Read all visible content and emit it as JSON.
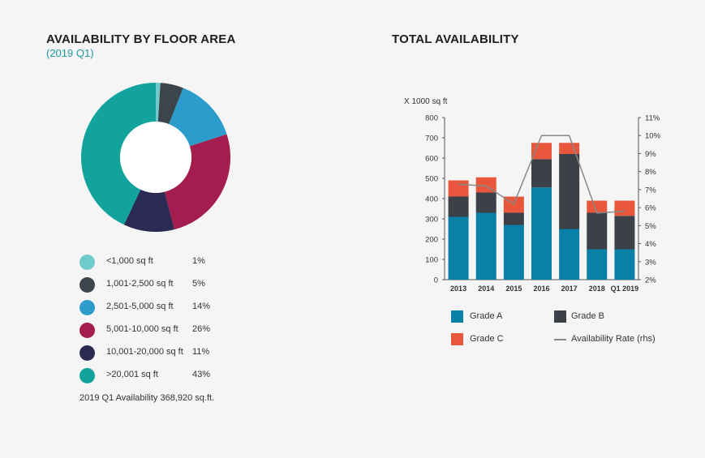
{
  "left": {
    "title": "AVAILABILITY BY FLOOR AREA",
    "subtitle": "(2019 Q1)",
    "footnote": "2019 Q1 Availability 368,920 sq.ft.",
    "legend": [
      {
        "label": "<1,000 sq ft",
        "value": "1%",
        "color": "#6fcbcb"
      },
      {
        "label": "1,001-2,500 sq ft",
        "value": "5%",
        "color": "#3d454c"
      },
      {
        "label": "2,501-5,000 sq ft",
        "value": "14%",
        "color": "#2b9ccb"
      },
      {
        "label": "5,001-10,000 sq ft",
        "value": "26%",
        "color": "#a51d4f"
      },
      {
        "label": "10,001-20,000 sq ft",
        "value": "11%",
        "color": "#2a2a52"
      },
      {
        "label": ">20,001 sq ft",
        "value": "43%",
        "color": "#12a39c"
      }
    ]
  },
  "right": {
    "title": "TOTAL AVAILABILITY",
    "unit_label": "X 1000 sq ft",
    "legend": [
      {
        "label": "Grade A",
        "color": "#0a7fa8"
      },
      {
        "label": "Grade B",
        "color": "#3b4147"
      },
      {
        "label": "Grade C",
        "color": "#e8573c"
      },
      {
        "label": "Availability Rate (rhs)",
        "color": "#888888"
      }
    ]
  },
  "chart_data": [
    {
      "type": "pie",
      "title": "AVAILABILITY BY FLOOR AREA",
      "subtitle": "(2019 Q1)",
      "categories": [
        "<1,000 sq ft",
        "1,001-2,500 sq ft",
        "2,501-5,000 sq ft",
        "5,001-10,000 sq ft",
        "10,001-20,000 sq ft",
        ">20,001 sq ft"
      ],
      "values": [
        1,
        5,
        14,
        26,
        11,
        43
      ],
      "colors": [
        "#6fcbcb",
        "#3d454c",
        "#2b9ccb",
        "#a51d4f",
        "#2a2a52",
        "#12a39c"
      ],
      "donut": true
    },
    {
      "type": "bar",
      "stacked": true,
      "title": "TOTAL AVAILABILITY",
      "ylabel": "X 1000 sq ft",
      "categories": [
        "2013",
        "2014",
        "2015",
        "2016",
        "2017",
        "2018",
        "Q1 2019"
      ],
      "series": [
        {
          "name": "Grade A",
          "color": "#0a7fa8",
          "values": [
            310,
            330,
            270,
            455,
            250,
            150,
            150
          ]
        },
        {
          "name": "Grade B",
          "color": "#3b4147",
          "values": [
            100,
            100,
            60,
            140,
            370,
            180,
            165
          ]
        },
        {
          "name": "Grade C",
          "color": "#e8573c",
          "values": [
            80,
            75,
            80,
            80,
            55,
            60,
            75
          ]
        }
      ],
      "line_series": {
        "name": "Availability Rate (rhs)",
        "color": "#888888",
        "axis": "right",
        "values": [
          7.3,
          7.2,
          6.2,
          10.0,
          10.0,
          5.7,
          5.8
        ]
      },
      "ylim": [
        0,
        800
      ],
      "yticks": [
        "0",
        "100",
        "200",
        "300",
        "400",
        "500",
        "600",
        "700",
        "800"
      ],
      "ylim_right": [
        2,
        11
      ],
      "yticks_right": [
        "2%",
        "3%",
        "4%",
        "5%",
        "6%",
        "7%",
        "8%",
        "9%",
        "10%",
        "11%"
      ]
    }
  ]
}
